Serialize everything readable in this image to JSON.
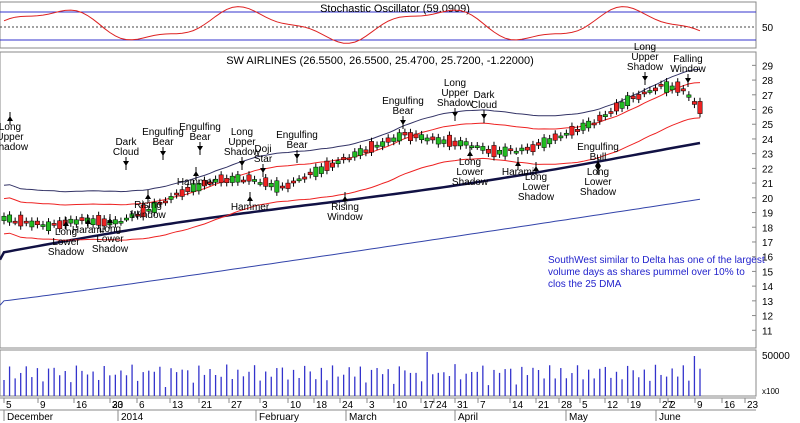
{
  "chart_data": {
    "type": "candlestick",
    "title": "SW AIRLINES (26.5500, 26.5500, 25.4700, 25.7200, -1.22000)",
    "oscillator": {
      "title": "Stochastic Oscillator (59.0909)",
      "tick_labels": [
        "50"
      ],
      "upper_line": 80,
      "lower_line": 20
    },
    "price_axis": {
      "ticks": [
        "29",
        "28",
        "27",
        "26",
        "25",
        "24",
        "23",
        "22",
        "21",
        "20",
        "19",
        "18",
        "17",
        "16",
        "15",
        "14",
        "13",
        "12",
        "11"
      ],
      "ylim": [
        10,
        29.5
      ]
    },
    "volume_axis": {
      "tick_labels": [
        "50000"
      ],
      "unit_label": "x100"
    },
    "x_axis": {
      "day_ticks": [
        "5",
        "9",
        "16",
        "23",
        "30",
        "6",
        "13",
        "21",
        "27",
        "3",
        "10",
        "18",
        "24",
        "3",
        "10",
        "17",
        "24",
        "31",
        "7",
        "14",
        "21",
        "28",
        "5",
        "12",
        "19",
        "27",
        "2",
        "9",
        "16",
        "23"
      ],
      "month_labels": [
        "December",
        "2014",
        "February",
        "March",
        "April",
        "May",
        "June"
      ]
    },
    "annotation": "SouthWest similar to Delta has one of the largest volume days as shares pummel over 10% to clos the 25 DMA",
    "pattern_labels": [
      {
        "text": [
          "Long",
          "Upper",
          "Shadow"
        ]
      },
      {
        "text": [
          "Long",
          "Lower",
          "Shadow"
        ]
      },
      {
        "text": [
          "Harami"
        ]
      },
      {
        "text": [
          "Long",
          "Lower",
          "Shadow"
        ]
      },
      {
        "text": [
          "Rising",
          "Window"
        ]
      },
      {
        "text": [
          "Dark",
          "Cloud"
        ]
      },
      {
        "text": [
          "Engulfing",
          "Bear"
        ]
      },
      {
        "text": [
          "Hammer"
        ]
      },
      {
        "text": [
          "Engulfing",
          "Bear"
        ]
      },
      {
        "text": [
          "Long",
          "Upper",
          "Shadow"
        ]
      },
      {
        "text": [
          "Doji",
          "Star"
        ]
      },
      {
        "text": [
          "Hammer"
        ]
      },
      {
        "text": [
          "Engulfing",
          "Bear"
        ]
      },
      {
        "text": [
          "Rising",
          "Window"
        ]
      },
      {
        "text": [
          "Engulfing",
          "Bear"
        ]
      },
      {
        "text": [
          "Long",
          "Upper",
          "Shadow"
        ]
      },
      {
        "text": [
          "Dark",
          "Cloud"
        ]
      },
      {
        "text": [
          "Long",
          "Lower",
          "Shadow"
        ]
      },
      {
        "text": [
          "Harami"
        ]
      },
      {
        "text": [
          "Long",
          "Lower",
          "Shadow"
        ]
      },
      {
        "text": [
          "Engulfing",
          "Bull"
        ]
      },
      {
        "text": [
          "Long",
          "Lower",
          "Shadow"
        ]
      },
      {
        "text": [
          "Long",
          "Upper",
          "Shadow"
        ]
      },
      {
        "text": [
          "Falling",
          "Window"
        ]
      }
    ],
    "series": [
      {
        "name": "close"
      },
      {
        "name": "upper band"
      },
      {
        "name": "lower band"
      },
      {
        "name": "moving average"
      },
      {
        "name": "long moving average"
      }
    ],
    "colors": {
      "up": "#22bb22",
      "down": "#ee2222",
      "band": "#ee2222",
      "ma": "#111144",
      "long_ma": "#3344aa",
      "osc": "#dd2222",
      "volume": "#3333cc",
      "frame": "#0000aa"
    }
  }
}
